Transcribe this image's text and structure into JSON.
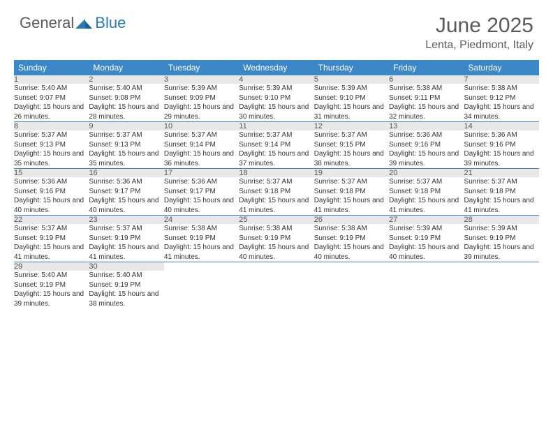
{
  "logo": {
    "general": "General",
    "blue": "Blue"
  },
  "title": "June 2025",
  "location": "Lenta, Piedmont, Italy",
  "colors": {
    "header_bg": "#3b87c8",
    "header_text": "#ffffff",
    "daynum_bg": "#e8e8e8",
    "logo_gray": "#5a5a5a",
    "logo_blue": "#2a7ab8"
  },
  "weekdays": [
    "Sunday",
    "Monday",
    "Tuesday",
    "Wednesday",
    "Thursday",
    "Friday",
    "Saturday"
  ],
  "weeks": [
    [
      {
        "n": "1",
        "sr": "5:40 AM",
        "ss": "9:07 PM",
        "dl": "15 hours and 26 minutes."
      },
      {
        "n": "2",
        "sr": "5:40 AM",
        "ss": "9:08 PM",
        "dl": "15 hours and 28 minutes."
      },
      {
        "n": "3",
        "sr": "5:39 AM",
        "ss": "9:09 PM",
        "dl": "15 hours and 29 minutes."
      },
      {
        "n": "4",
        "sr": "5:39 AM",
        "ss": "9:10 PM",
        "dl": "15 hours and 30 minutes."
      },
      {
        "n": "5",
        "sr": "5:39 AM",
        "ss": "9:10 PM",
        "dl": "15 hours and 31 minutes."
      },
      {
        "n": "6",
        "sr": "5:38 AM",
        "ss": "9:11 PM",
        "dl": "15 hours and 32 minutes."
      },
      {
        "n": "7",
        "sr": "5:38 AM",
        "ss": "9:12 PM",
        "dl": "15 hours and 34 minutes."
      }
    ],
    [
      {
        "n": "8",
        "sr": "5:37 AM",
        "ss": "9:13 PM",
        "dl": "15 hours and 35 minutes."
      },
      {
        "n": "9",
        "sr": "5:37 AM",
        "ss": "9:13 PM",
        "dl": "15 hours and 35 minutes."
      },
      {
        "n": "10",
        "sr": "5:37 AM",
        "ss": "9:14 PM",
        "dl": "15 hours and 36 minutes."
      },
      {
        "n": "11",
        "sr": "5:37 AM",
        "ss": "9:14 PM",
        "dl": "15 hours and 37 minutes."
      },
      {
        "n": "12",
        "sr": "5:37 AM",
        "ss": "9:15 PM",
        "dl": "15 hours and 38 minutes."
      },
      {
        "n": "13",
        "sr": "5:36 AM",
        "ss": "9:16 PM",
        "dl": "15 hours and 39 minutes."
      },
      {
        "n": "14",
        "sr": "5:36 AM",
        "ss": "9:16 PM",
        "dl": "15 hours and 39 minutes."
      }
    ],
    [
      {
        "n": "15",
        "sr": "5:36 AM",
        "ss": "9:16 PM",
        "dl": "15 hours and 40 minutes."
      },
      {
        "n": "16",
        "sr": "5:36 AM",
        "ss": "9:17 PM",
        "dl": "15 hours and 40 minutes."
      },
      {
        "n": "17",
        "sr": "5:36 AM",
        "ss": "9:17 PM",
        "dl": "15 hours and 40 minutes."
      },
      {
        "n": "18",
        "sr": "5:37 AM",
        "ss": "9:18 PM",
        "dl": "15 hours and 41 minutes."
      },
      {
        "n": "19",
        "sr": "5:37 AM",
        "ss": "9:18 PM",
        "dl": "15 hours and 41 minutes."
      },
      {
        "n": "20",
        "sr": "5:37 AM",
        "ss": "9:18 PM",
        "dl": "15 hours and 41 minutes."
      },
      {
        "n": "21",
        "sr": "5:37 AM",
        "ss": "9:18 PM",
        "dl": "15 hours and 41 minutes."
      }
    ],
    [
      {
        "n": "22",
        "sr": "5:37 AM",
        "ss": "9:19 PM",
        "dl": "15 hours and 41 minutes."
      },
      {
        "n": "23",
        "sr": "5:37 AM",
        "ss": "9:19 PM",
        "dl": "15 hours and 41 minutes."
      },
      {
        "n": "24",
        "sr": "5:38 AM",
        "ss": "9:19 PM",
        "dl": "15 hours and 41 minutes."
      },
      {
        "n": "25",
        "sr": "5:38 AM",
        "ss": "9:19 PM",
        "dl": "15 hours and 40 minutes."
      },
      {
        "n": "26",
        "sr": "5:38 AM",
        "ss": "9:19 PM",
        "dl": "15 hours and 40 minutes."
      },
      {
        "n": "27",
        "sr": "5:39 AM",
        "ss": "9:19 PM",
        "dl": "15 hours and 40 minutes."
      },
      {
        "n": "28",
        "sr": "5:39 AM",
        "ss": "9:19 PM",
        "dl": "15 hours and 39 minutes."
      }
    ],
    [
      {
        "n": "29",
        "sr": "5:40 AM",
        "ss": "9:19 PM",
        "dl": "15 hours and 39 minutes."
      },
      {
        "n": "30",
        "sr": "5:40 AM",
        "ss": "9:19 PM",
        "dl": "15 hours and 38 minutes."
      },
      null,
      null,
      null,
      null,
      null
    ]
  ],
  "labels": {
    "sunrise": "Sunrise: ",
    "sunset": "Sunset: ",
    "daylight": "Daylight: "
  }
}
